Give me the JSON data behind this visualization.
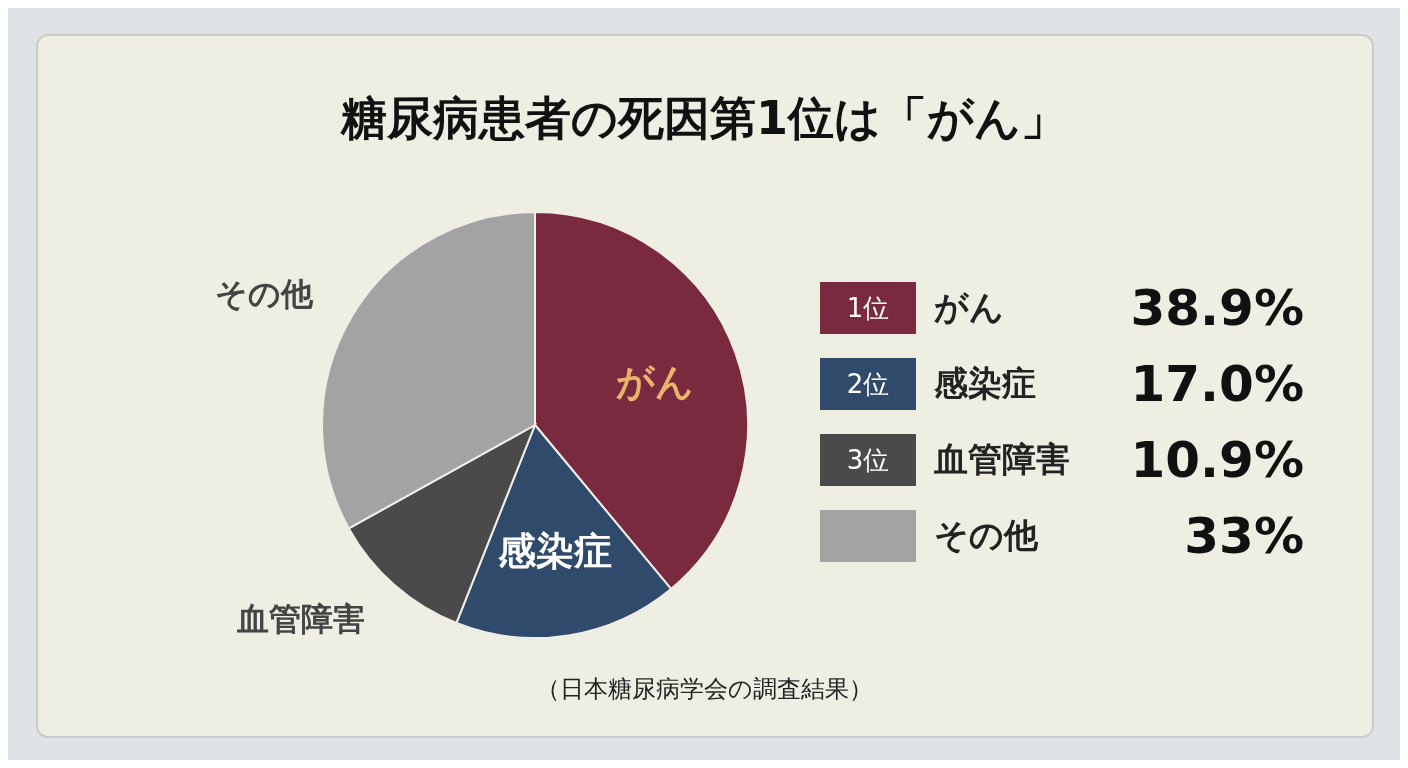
{
  "chart_data": {
    "type": "pie",
    "title": "糖尿病患者の死因第1位は「がん」",
    "categories": [
      "がん",
      "感染症",
      "血管障害",
      "その他"
    ],
    "values": [
      38.9,
      17.0,
      10.9,
      33
    ],
    "colors": [
      "#7a2a3e",
      "#2f4a6a",
      "#4a4a4a",
      "#a3a3a3"
    ],
    "value_labels": [
      "38.9%",
      "17.0%",
      "10.9%",
      "33%"
    ],
    "legend": "right",
    "annotations": [
      "（日本糖尿病学会の調査結果）",
      {
        "text": "1位",
        "x": "がん"
      },
      {
        "text": "2位",
        "x": "感染症"
      },
      {
        "text": "3位",
        "x": "血管障害"
      }
    ]
  }
}
